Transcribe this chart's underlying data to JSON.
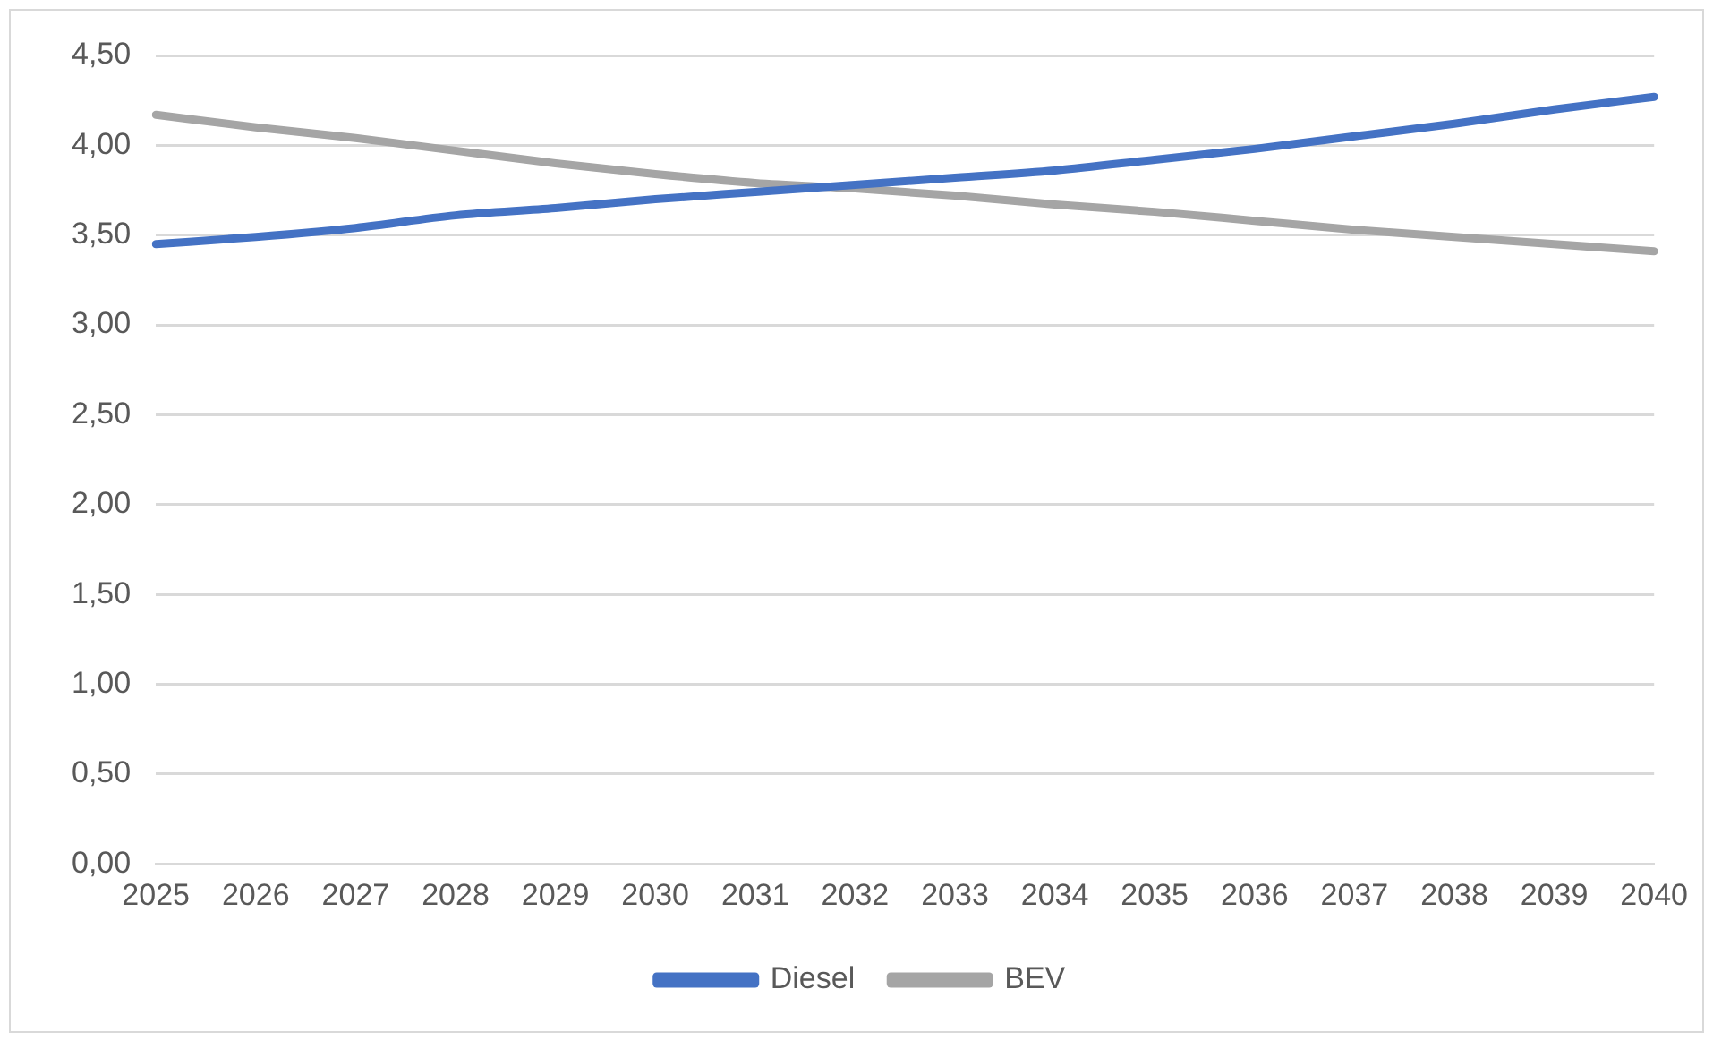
{
  "chart_data": {
    "type": "line",
    "categories": [
      "2025",
      "2026",
      "2027",
      "2028",
      "2029",
      "2030",
      "2031",
      "2032",
      "2033",
      "2034",
      "2035",
      "2036",
      "2037",
      "2038",
      "2039",
      "2040"
    ],
    "series": [
      {
        "name": "Diesel",
        "color": "#4472c4",
        "values": [
          3.45,
          3.49,
          3.54,
          3.61,
          3.65,
          3.7,
          3.74,
          3.78,
          3.82,
          3.86,
          3.92,
          3.98,
          4.05,
          4.12,
          4.2,
          4.27
        ]
      },
      {
        "name": "BEV",
        "color": "#a5a5a5",
        "values": [
          4.17,
          4.1,
          4.04,
          3.97,
          3.9,
          3.84,
          3.79,
          3.76,
          3.72,
          3.67,
          3.63,
          3.58,
          3.53,
          3.49,
          3.45,
          3.41
        ]
      }
    ],
    "ylim": [
      0,
      4.5
    ],
    "yticks": [
      {
        "value": 0,
        "label": "0,00"
      },
      {
        "value": 0.5,
        "label": "0,50"
      },
      {
        "value": 1,
        "label": "1,00"
      },
      {
        "value": 1.5,
        "label": "1,50"
      },
      {
        "value": 2,
        "label": "2,00"
      },
      {
        "value": 2.5,
        "label": "2,50"
      },
      {
        "value": 3,
        "label": "3,00"
      },
      {
        "value": 3.5,
        "label": "3,50"
      },
      {
        "value": 4,
        "label": "4,00"
      },
      {
        "value": 4.5,
        "label": "4,50"
      }
    ],
    "grid": "y",
    "legend": "bottom",
    "marker": "none",
    "line_style": "solid"
  }
}
